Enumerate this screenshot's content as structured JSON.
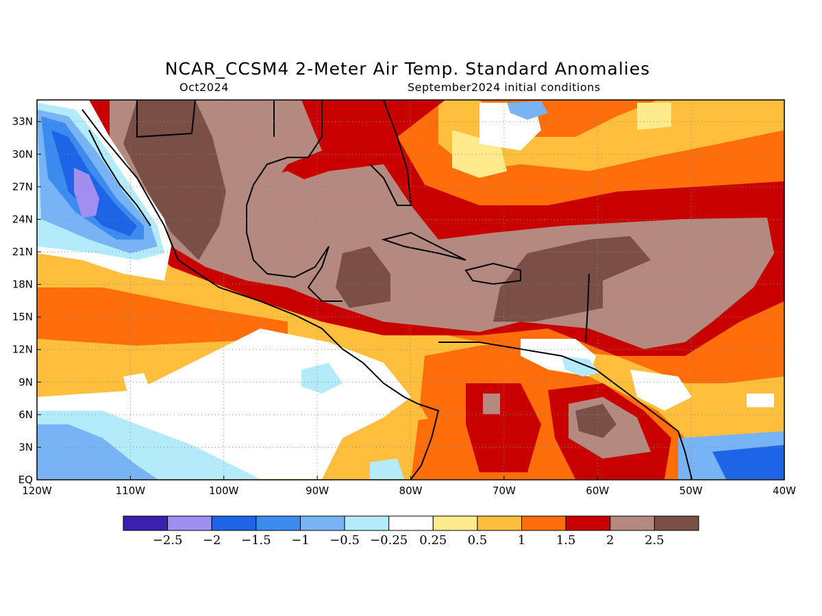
{
  "title": "NCAR_CCSM4 2-Meter Air Temp. Standard Anomalies",
  "subtitle_left": "Oct2024",
  "subtitle_right": "September2024 initial conditions",
  "map": {
    "lon_range": [
      -120,
      -40
    ],
    "lat_range": [
      0,
      35
    ],
    "lon_labels": [
      "120W",
      "110W",
      "100W",
      "90W",
      "80W",
      "70W",
      "60W",
      "50W",
      "40W"
    ],
    "lat_labels": [
      "EQ",
      "3N",
      "6N",
      "9N",
      "12N",
      "15N",
      "18N",
      "21N",
      "24N",
      "27N",
      "30N",
      "33N"
    ],
    "grid": "dotted"
  },
  "colorbar": {
    "colors": [
      "#3a1fb0",
      "#a08ef0",
      "#1e64e6",
      "#3c8cf0",
      "#78b4f5",
      "#b4ebfa",
      "#ffffff",
      "#ffeb8c",
      "#ffbe3c",
      "#ff6e0a",
      "#c80000",
      "#b48a80",
      "#7a5046"
    ],
    "labels": [
      "-2.5",
      "-2",
      "-1.5",
      "-1",
      "-0.5",
      "-0.25",
      "0.25",
      "0.5",
      "1",
      "1.5",
      "2",
      "2.5"
    ]
  }
}
